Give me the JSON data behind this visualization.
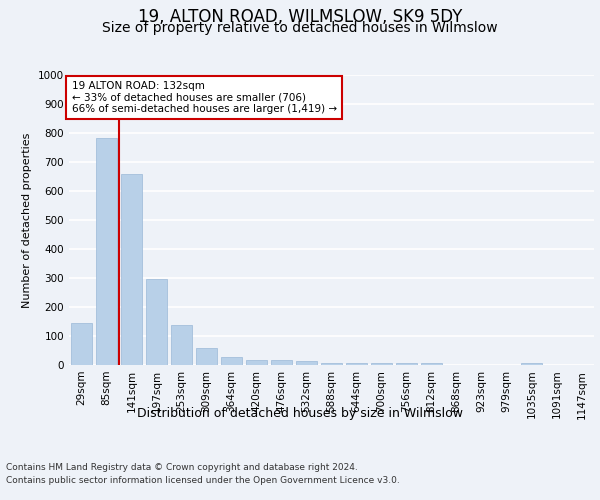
{
  "title": "19, ALTON ROAD, WILMSLOW, SK9 5DY",
  "subtitle": "Size of property relative to detached houses in Wilmslow",
  "xlabel": "Distribution of detached houses by size in Wilmslow",
  "ylabel": "Number of detached properties",
  "categories": [
    "29sqm",
    "85sqm",
    "141sqm",
    "197sqm",
    "253sqm",
    "309sqm",
    "364sqm",
    "420sqm",
    "476sqm",
    "532sqm",
    "588sqm",
    "644sqm",
    "700sqm",
    "756sqm",
    "812sqm",
    "868sqm",
    "923sqm",
    "979sqm",
    "1035sqm",
    "1091sqm",
    "1147sqm"
  ],
  "values": [
    145,
    782,
    660,
    295,
    138,
    57,
    28,
    18,
    18,
    14,
    8,
    8,
    8,
    8,
    8,
    0,
    0,
    0,
    8,
    0,
    0
  ],
  "bar_color": "#b8d0e8",
  "bar_edge_color": "#9ab8d8",
  "annotation_line1": "19 ALTON ROAD: 132sqm",
  "annotation_line2": "← 33% of detached houses are smaller (706)",
  "annotation_line3": "66% of semi-detached houses are larger (1,419) →",
  "annotation_box_color": "#ffffff",
  "annotation_box_edge": "#cc0000",
  "red_line_color": "#cc0000",
  "ylim": [
    0,
    1000
  ],
  "yticks": [
    0,
    100,
    200,
    300,
    400,
    500,
    600,
    700,
    800,
    900,
    1000
  ],
  "footer_line1": "Contains HM Land Registry data © Crown copyright and database right 2024.",
  "footer_line2": "Contains public sector information licensed under the Open Government Licence v3.0.",
  "bg_color": "#eef2f8",
  "plot_bg_color": "#eef2f8",
  "grid_color": "#ffffff",
  "title_fontsize": 12,
  "subtitle_fontsize": 10,
  "ylabel_fontsize": 8,
  "xlabel_fontsize": 9,
  "tick_fontsize": 7.5,
  "footer_fontsize": 6.5,
  "annot_fontsize": 7.5
}
